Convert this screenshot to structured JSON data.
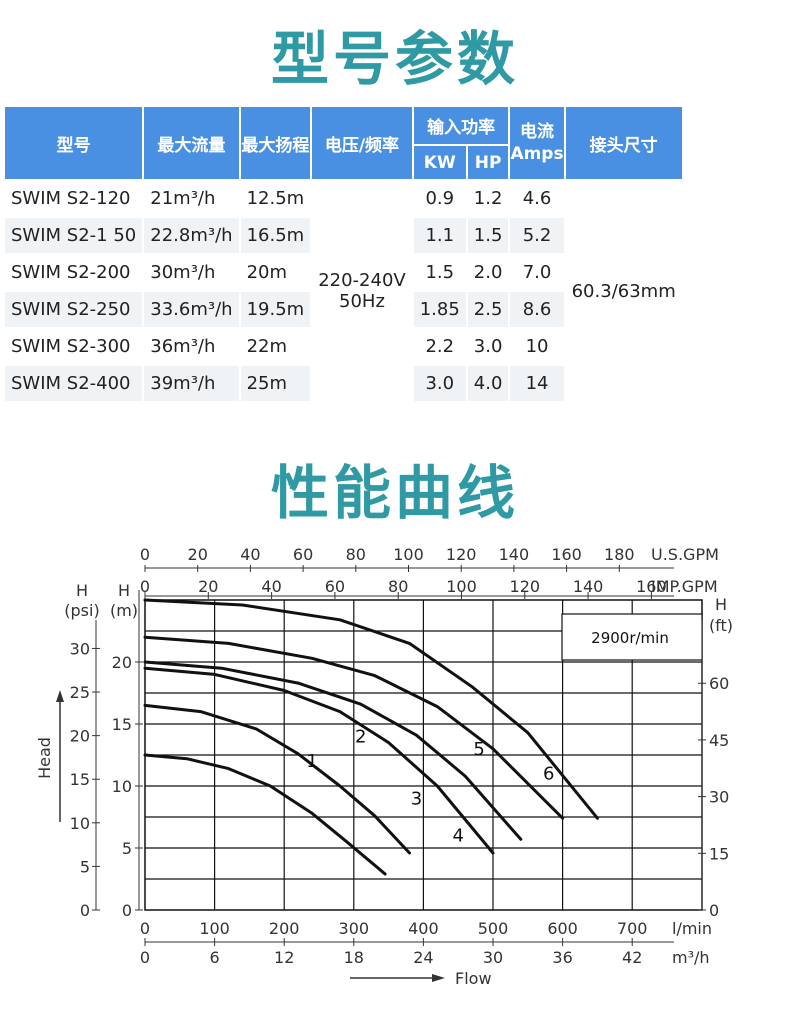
{
  "headings": {
    "params": "型号参数",
    "curves": "性能曲线"
  },
  "table": {
    "headers": {
      "model": "型号",
      "max_flow": "最大流量",
      "max_head": "最大扬程",
      "voltage": "电压/频率",
      "power": "输入功率",
      "kw": "KW",
      "hp": "HP",
      "current_line1": "电流",
      "current_line2": "Amps",
      "connector": "接头尺寸"
    },
    "rows": [
      {
        "model": "SWIM S2-120",
        "flow": "21m³/h",
        "head": "12.5m",
        "kw": "0.9",
        "hp": "1.2",
        "amps": "4.6"
      },
      {
        "model": "SWIM S2-1 50",
        "flow": "22.8m³/h",
        "head": "16.5m",
        "kw": "1.1",
        "hp": "1.5",
        "amps": "5.2"
      },
      {
        "model": "SWIM S2-200",
        "flow": "30m³/h",
        "head": "20m",
        "kw": "1.5",
        "hp": "2.0",
        "amps": "7.0"
      },
      {
        "model": "SWIM S2-250",
        "flow": "33.6m³/h",
        "head": "19.5m",
        "kw": "1.85",
        "hp": "2.5",
        "amps": "8.6"
      },
      {
        "model": "SWIM S2-300",
        "flow": "36m³/h",
        "head": "22m",
        "kw": "2.2",
        "hp": "3.0",
        "amps": "10"
      },
      {
        "model": "SWIM S2-400",
        "flow": "39m³/h",
        "head": "25m",
        "kw": "3.0",
        "hp": "4.0",
        "amps": "14"
      }
    ],
    "voltage_line1": "220-240V",
    "voltage_line2": "50Hz",
    "connector": "60.3/63mm"
  },
  "chart_data": {
    "type": "line",
    "speed_label": "2900r/min",
    "x_unit_lmin": "l/min",
    "x_unit_m3h": "m³/h",
    "x_unit_usgpm": "U.S.GPM",
    "x_unit_impgpm": "IMP.GPM",
    "flow_label": "Flow",
    "head_label": "Head",
    "y_left_m_label": [
      "H",
      "(m)"
    ],
    "y_left_psi_label": [
      "H",
      "(psi)"
    ],
    "y_right_ft_label": [
      "H",
      "(ft)"
    ],
    "x_ticks_lmin": [
      "0",
      "100",
      "200",
      "300",
      "400",
      "500",
      "600",
      "700"
    ],
    "x_ticks_m3h": [
      "0",
      "6",
      "12",
      "18",
      "24",
      "30",
      "36",
      "42"
    ],
    "x_ticks_usgpm": [
      "0",
      "20",
      "40",
      "60",
      "80",
      "100",
      "120",
      "140",
      "160",
      "180"
    ],
    "x_ticks_impgpm": [
      "0",
      "20",
      "40",
      "60",
      "80",
      "100",
      "120",
      "140",
      "160"
    ],
    "y_ticks_m": [
      "0",
      "5",
      "10",
      "15",
      "20"
    ],
    "y_ticks_psi": [
      "0",
      "5",
      "10",
      "15",
      "20",
      "25",
      "30"
    ],
    "y_ticks_ft": [
      "0",
      "15",
      "30",
      "45",
      "60"
    ],
    "xlim_lmin": [
      0,
      800
    ],
    "ylim_m": [
      0,
      25
    ],
    "grid": true,
    "series": [
      {
        "name": "1",
        "x": [
          0,
          60,
          120,
          180,
          240,
          290,
          345
        ],
        "y": [
          12.5,
          12.2,
          11.4,
          10.0,
          7.8,
          5.5,
          2.9
        ]
      },
      {
        "name": "2",
        "x": [
          0,
          80,
          160,
          220,
          280,
          330,
          380
        ],
        "y": [
          16.5,
          16.0,
          14.6,
          12.6,
          10.0,
          7.6,
          4.6
        ]
      },
      {
        "name": "3",
        "x": [
          0,
          100,
          200,
          280,
          350,
          420,
          500
        ],
        "y": [
          19.5,
          19.0,
          17.7,
          16.0,
          13.5,
          10.0,
          4.6
        ]
      },
      {
        "name": "4",
        "x": [
          0,
          110,
          220,
          310,
          390,
          460,
          540
        ],
        "y": [
          20.0,
          19.5,
          18.3,
          16.6,
          14.1,
          10.8,
          5.7
        ]
      },
      {
        "name": "5",
        "x": [
          0,
          120,
          240,
          330,
          420,
          500,
          600
        ],
        "y": [
          22.0,
          21.5,
          20.3,
          18.9,
          16.4,
          13.0,
          7.4
        ]
      },
      {
        "name": "6",
        "x": [
          0,
          140,
          280,
          380,
          470,
          550,
          650
        ],
        "y": [
          25.0,
          24.6,
          23.4,
          21.5,
          18.0,
          14.3,
          7.4
        ]
      }
    ]
  },
  "colors": {
    "heading": "#2f9aa3",
    "header_bg": "#4a90e2",
    "row_alt": "#f0f3f6",
    "curve": "#111111"
  }
}
